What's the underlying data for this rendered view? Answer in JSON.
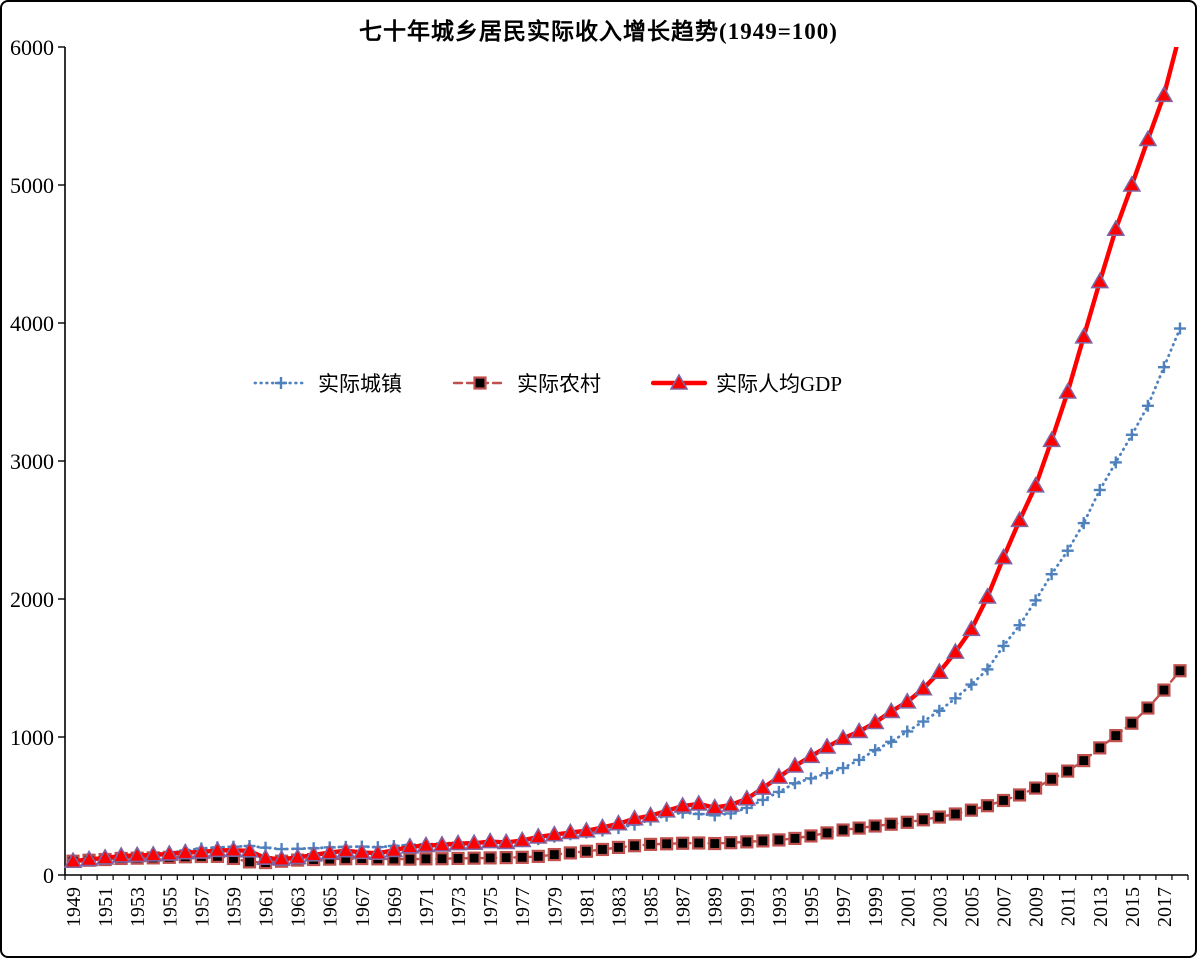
{
  "frame": {
    "border_color": "#000000",
    "background": "#ffffff"
  },
  "chart_data": {
    "type": "line",
    "title": "七十年城乡居民实际收入增长趋势(1949=100)",
    "xlabel": "",
    "ylabel": "",
    "ylim": [
      0,
      6000
    ],
    "ytick_step": 1000,
    "ytick_labels": [
      "0",
      "1000",
      "2000",
      "3000",
      "4000",
      "5000",
      "6000"
    ],
    "grid": false,
    "legend_position": "inside-upper-left",
    "x_tick_label_every": 2,
    "x_tick_labels_shown": [
      "1949",
      "1951",
      "1953",
      "1955",
      "1957",
      "1959",
      "1961",
      "1963",
      "1965",
      "1967",
      "1969",
      "1971",
      "1973",
      "1975",
      "1977",
      "1979",
      "1981",
      "1983",
      "1985",
      "1987",
      "1989",
      "1991",
      "1993",
      "1995",
      "1997",
      "1999",
      "2001",
      "2003",
      "2005",
      "2007",
      "2009",
      "2011",
      "2013",
      "2015",
      "2017"
    ],
    "categories": [
      "1949",
      "1950",
      "1951",
      "1952",
      "1953",
      "1954",
      "1955",
      "1956",
      "1957",
      "1958",
      "1959",
      "1960",
      "1961",
      "1962",
      "1963",
      "1964",
      "1965",
      "1966",
      "1967",
      "1968",
      "1969",
      "1970",
      "1971",
      "1972",
      "1973",
      "1974",
      "1975",
      "1976",
      "1977",
      "1978",
      "1979",
      "1980",
      "1981",
      "1982",
      "1983",
      "1984",
      "1985",
      "1986",
      "1987",
      "1988",
      "1989",
      "1990",
      "1991",
      "1992",
      "1993",
      "1994",
      "1995",
      "1996",
      "1997",
      "1998",
      "1999",
      "2000",
      "2001",
      "2002",
      "2003",
      "2004",
      "2005",
      "2006",
      "2007",
      "2008",
      "2009",
      "2010",
      "2011",
      "2012",
      "2013",
      "2014",
      "2015",
      "2016",
      "2017",
      "2018"
    ],
    "series": [
      {
        "key": "urban",
        "name": "实际城镇",
        "color": "#4f81bd",
        "line_style": "dotted",
        "marker": "plus",
        "values": [
          100,
          112,
          122,
          135,
          148,
          152,
          160,
          178,
          192,
          200,
          205,
          210,
          198,
          188,
          190,
          194,
          200,
          204,
          206,
          202,
          210,
          218,
          222,
          228,
          234,
          238,
          242,
          240,
          245,
          260,
          278,
          295,
          308,
          322,
          340,
          365,
          400,
          430,
          452,
          442,
          432,
          446,
          486,
          544,
          602,
          665,
          700,
          738,
          775,
          834,
          905,
          965,
          1040,
          1112,
          1190,
          1280,
          1380,
          1490,
          1660,
          1810,
          1990,
          2180,
          2350,
          2550,
          2790,
          2990,
          3190,
          3400,
          3680,
          3960
        ]
      },
      {
        "key": "rural",
        "name": "实际农村",
        "color": "#c0504d",
        "marker_fill": "#000000",
        "line_style": "dashed",
        "marker": "square",
        "values": [
          100,
          107,
          112,
          120,
          122,
          124,
          128,
          132,
          134,
          135,
          120,
          95,
          90,
          100,
          108,
          112,
          115,
          118,
          119,
          117,
          116,
          115,
          117,
          118,
          120,
          122,
          124,
          126,
          128,
          135,
          148,
          160,
          172,
          185,
          200,
          212,
          222,
          226,
          230,
          232,
          228,
          234,
          240,
          247,
          254,
          265,
          283,
          305,
          326,
          340,
          355,
          368,
          382,
          400,
          420,
          442,
          470,
          502,
          540,
          580,
          630,
          694,
          753,
          829,
          921,
          1010,
          1100,
          1210,
          1340,
          1480
        ]
      },
      {
        "key": "gdp",
        "name": "实际人均GDP",
        "color": "#ff0000",
        "marker_stroke": "#8064a2",
        "line_style": "solid",
        "marker": "triangle",
        "values": [
          100,
          112,
          124,
          138,
          142,
          146,
          152,
          162,
          166,
          178,
          180,
          175,
          122,
          115,
          126,
          146,
          162,
          176,
          164,
          158,
          178,
          204,
          214,
          218,
          228,
          230,
          242,
          236,
          250,
          276,
          292,
          308,
          320,
          344,
          372,
          408,
          430,
          465,
          500,
          515,
          488,
          508,
          552,
          630,
          710,
          790,
          860,
          928,
          990,
          1040,
          1105,
          1185,
          1255,
          1350,
          1470,
          1615,
          1780,
          2015,
          2300,
          2570,
          2820,
          3150,
          3500,
          3900,
          4300,
          4680,
          5000,
          5330,
          5650,
          6100
        ]
      }
    ]
  }
}
